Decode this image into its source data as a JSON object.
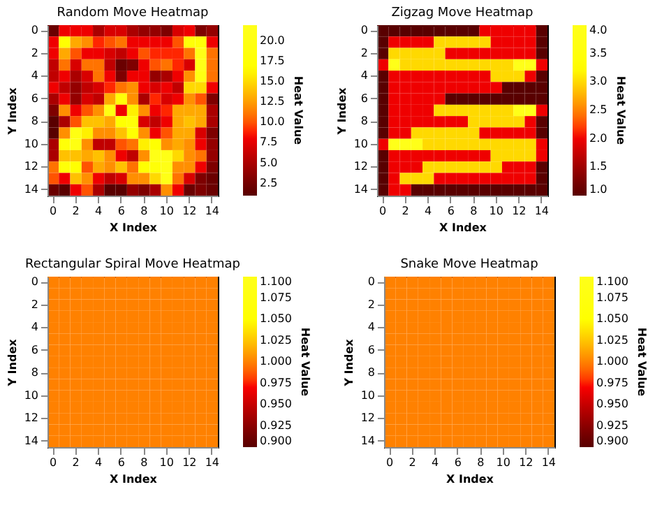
{
  "chart_data": [
    {
      "type": "heatmap",
      "title": "Random Move Heatmap",
      "xlabel": "X Index",
      "ylabel": "Y Index",
      "clabel": "Heat Value",
      "categories": [
        "0",
        null,
        "2",
        null,
        "4",
        null,
        "6",
        null,
        "8",
        null,
        "10",
        null,
        "12",
        null,
        "14"
      ],
      "y_categories": [
        "0",
        null,
        "2",
        null,
        "4",
        null,
        "6",
        null,
        "8",
        null,
        "10",
        null,
        "12",
        null,
        "14"
      ],
      "cells": [
        [
          2,
          8,
          8,
          8,
          5,
          7,
          7,
          5,
          4,
          4,
          3,
          7,
          8,
          3,
          4
        ],
        [
          8,
          17,
          13,
          12,
          9,
          10,
          11,
          8,
          8,
          8,
          8,
          10,
          18,
          18,
          8
        ],
        [
          8,
          13,
          10,
          8,
          8,
          7,
          6,
          8,
          10,
          9,
          9,
          9,
          11,
          21,
          11
        ],
        [
          6,
          11,
          7,
          11,
          11,
          6,
          2,
          3,
          8,
          10,
          11,
          9,
          7,
          21,
          11
        ],
        [
          6,
          8,
          5,
          7,
          11,
          8,
          3,
          8,
          8,
          4,
          5,
          8,
          12,
          20,
          11
        ],
        [
          8,
          6,
          4,
          6,
          7,
          9,
          11,
          12,
          8,
          7,
          8,
          6,
          15,
          15,
          8
        ],
        [
          5,
          8,
          4,
          7,
          6,
          13,
          18,
          12,
          5,
          9,
          7,
          8,
          12,
          10,
          3
        ],
        [
          3,
          12,
          8,
          10,
          12,
          20,
          8,
          16,
          12,
          8,
          9,
          13,
          13,
          13,
          5
        ],
        [
          1,
          5,
          10,
          14,
          14,
          13,
          17,
          18,
          7,
          6,
          8,
          13,
          14,
          13,
          5
        ],
        [
          1,
          12,
          20,
          16,
          12,
          12,
          14,
          17,
          12,
          8,
          10,
          13,
          13,
          7,
          3
        ],
        [
          5,
          18,
          20,
          12,
          6,
          6,
          10,
          11,
          16,
          17,
          12,
          13,
          12,
          8,
          4
        ],
        [
          5,
          14,
          14,
          13,
          14,
          12,
          8,
          6,
          12,
          21,
          21,
          15,
          12,
          11,
          4
        ],
        [
          11,
          18,
          17,
          10,
          13,
          12,
          14,
          11,
          17,
          18,
          21,
          12,
          12,
          8,
          3
        ],
        [
          10,
          8,
          14,
          12,
          8,
          6,
          7,
          12,
          12,
          15,
          21,
          11,
          7,
          3,
          2
        ],
        [
          2,
          1,
          8,
          10,
          5,
          1,
          1,
          4,
          3,
          5,
          12,
          8,
          2,
          3,
          2
        ]
      ],
      "clim": [
        1,
        22
      ],
      "cticks": [
        {
          "value": 2.5,
          "label": "2.5"
        },
        {
          "value": 5,
          "label": "5.0"
        },
        {
          "value": 7.5,
          "label": "7.5"
        },
        {
          "value": 10,
          "label": "10.0"
        },
        {
          "value": 12.5,
          "label": "12.5"
        },
        {
          "value": 15,
          "label": "15.0"
        },
        {
          "value": 17.5,
          "label": "17.5"
        },
        {
          "value": 20,
          "label": "20.0"
        }
      ]
    },
    {
      "type": "heatmap",
      "title": "Zigzag Move Heatmap",
      "xlabel": "X Index",
      "ylabel": "Y Index",
      "clabel": "Heat Value",
      "categories": [
        "0",
        null,
        "2",
        null,
        "4",
        null,
        "6",
        null,
        "8",
        null,
        "10",
        null,
        "12",
        null,
        "14"
      ],
      "y_categories": [
        "0",
        null,
        "2",
        null,
        "4",
        null,
        "6",
        null,
        "8",
        null,
        "10",
        null,
        "12",
        null,
        "14"
      ],
      "cells": [
        [
          1,
          1,
          1,
          1,
          1,
          1,
          1,
          1,
          1,
          2,
          2,
          2,
          2,
          2,
          1
        ],
        [
          1,
          2,
          2,
          2,
          2,
          3,
          3,
          3,
          3,
          3,
          2,
          2,
          2,
          2,
          1
        ],
        [
          1,
          3,
          3,
          3,
          3,
          3,
          2,
          2,
          2,
          2,
          2,
          2,
          2,
          2,
          1
        ],
        [
          2,
          4,
          3,
          3,
          3,
          3,
          3,
          3,
          3,
          3,
          3,
          3,
          4,
          4,
          2
        ],
        [
          1,
          2,
          2,
          2,
          2,
          2,
          2,
          2,
          2,
          2,
          3,
          3,
          3,
          2,
          1
        ],
        [
          1,
          2,
          2,
          2,
          2,
          2,
          2,
          2,
          2,
          2,
          2,
          1,
          1,
          1,
          1
        ],
        [
          1,
          2,
          2,
          2,
          2,
          2,
          1,
          1,
          1,
          1,
          1,
          1,
          1,
          1,
          1
        ],
        [
          1,
          2,
          2,
          2,
          2,
          3,
          3,
          3,
          3,
          3,
          3,
          3,
          4,
          4,
          2
        ],
        [
          1,
          2,
          2,
          2,
          2,
          2,
          2,
          2,
          3,
          3,
          3,
          3,
          3,
          2,
          1
        ],
        [
          1,
          2,
          2,
          3,
          3,
          3,
          3,
          3,
          3,
          2,
          2,
          2,
          2,
          2,
          1
        ],
        [
          2,
          4,
          4,
          4,
          3,
          3,
          3,
          3,
          3,
          3,
          3,
          3,
          3,
          3,
          2
        ],
        [
          1,
          2,
          2,
          2,
          2,
          2,
          2,
          2,
          2,
          2,
          3,
          3,
          3,
          3,
          2
        ],
        [
          1,
          2,
          2,
          2,
          3,
          3,
          3,
          3,
          3,
          3,
          3,
          2,
          2,
          2,
          1
        ],
        [
          1,
          2,
          3,
          3,
          3,
          2,
          2,
          2,
          2,
          2,
          2,
          2,
          2,
          2,
          1
        ],
        [
          1,
          2,
          2,
          1,
          1,
          1,
          1,
          1,
          1,
          1,
          1,
          1,
          1,
          1,
          1
        ]
      ],
      "clim": [
        1,
        4
      ],
      "cticks": [
        {
          "value": 1,
          "label": "1.0"
        },
        {
          "value": 1.5,
          "label": "1.5"
        },
        {
          "value": 2,
          "label": "2.0"
        },
        {
          "value": 2.5,
          "label": "2.5"
        },
        {
          "value": 3,
          "label": "3.0"
        },
        {
          "value": 3.5,
          "label": "3.5"
        },
        {
          "value": 4,
          "label": "4.0"
        }
      ]
    },
    {
      "type": "heatmap",
      "title": "Rectangular Spiral Move Heatmap",
      "xlabel": "X Index",
      "ylabel": "Y Index",
      "clabel": "Heat Value",
      "categories": [
        "0",
        null,
        "2",
        null,
        "4",
        null,
        "6",
        null,
        "8",
        null,
        "10",
        null,
        "12",
        null,
        "14"
      ],
      "y_categories": [
        "0",
        null,
        "2",
        null,
        "4",
        null,
        "6",
        null,
        "8",
        null,
        "10",
        null,
        "12",
        null,
        "14"
      ],
      "cells": [
        [
          1,
          1,
          1,
          1,
          1,
          1,
          1,
          1,
          1,
          1,
          1,
          1,
          1,
          1,
          1
        ],
        [
          1,
          1,
          1,
          1,
          1,
          1,
          1,
          1,
          1,
          1,
          1,
          1,
          1,
          1,
          1
        ],
        [
          1,
          1,
          1,
          1,
          1,
          1,
          1,
          1,
          1,
          1,
          1,
          1,
          1,
          1,
          1
        ],
        [
          1,
          1,
          1,
          1,
          1,
          1,
          1,
          1,
          1,
          1,
          1,
          1,
          1,
          1,
          1
        ],
        [
          1,
          1,
          1,
          1,
          1,
          1,
          1,
          1,
          1,
          1,
          1,
          1,
          1,
          1,
          1
        ],
        [
          1,
          1,
          1,
          1,
          1,
          1,
          1,
          1,
          1,
          1,
          1,
          1,
          1,
          1,
          1
        ],
        [
          1,
          1,
          1,
          1,
          1,
          1,
          1,
          1,
          1,
          1,
          1,
          1,
          1,
          1,
          1
        ],
        [
          1,
          1,
          1,
          1,
          1,
          1,
          1,
          1,
          1,
          1,
          1,
          1,
          1,
          1,
          1
        ],
        [
          1,
          1,
          1,
          1,
          1,
          1,
          1,
          1,
          1,
          1,
          1,
          1,
          1,
          1,
          1
        ],
        [
          1,
          1,
          1,
          1,
          1,
          1,
          1,
          1,
          1,
          1,
          1,
          1,
          1,
          1,
          1
        ],
        [
          1,
          1,
          1,
          1,
          1,
          1,
          1,
          1,
          1,
          1,
          1,
          1,
          1,
          1,
          1
        ],
        [
          1,
          1,
          1,
          1,
          1,
          1,
          1,
          1,
          1,
          1,
          1,
          1,
          1,
          1,
          1
        ],
        [
          1,
          1,
          1,
          1,
          1,
          1,
          1,
          1,
          1,
          1,
          1,
          1,
          1,
          1,
          1
        ],
        [
          1,
          1,
          1,
          1,
          1,
          1,
          1,
          1,
          1,
          1,
          1,
          1,
          1,
          1,
          1
        ],
        [
          1,
          1,
          1,
          1,
          1,
          1,
          1,
          1,
          1,
          1,
          1,
          1,
          1,
          1,
          1
        ]
      ],
      "clim": [
        0.9,
        1.1
      ],
      "cticks": [
        {
          "value": 0.9,
          "label": "0.900"
        },
        {
          "value": 0.925,
          "label": "0.925"
        },
        {
          "value": 0.95,
          "label": "0.950"
        },
        {
          "value": 0.975,
          "label": "0.975"
        },
        {
          "value": 1.0,
          "label": "1.000"
        },
        {
          "value": 1.025,
          "label": "1.025"
        },
        {
          "value": 1.05,
          "label": "1.050"
        },
        {
          "value": 1.075,
          "label": "1.075"
        },
        {
          "value": 1.1,
          "label": "1.100"
        }
      ]
    },
    {
      "type": "heatmap",
      "title": "Snake Move Heatmap",
      "xlabel": "X Index",
      "ylabel": "Y Index",
      "clabel": "Heat Value",
      "categories": [
        "0",
        null,
        "2",
        null,
        "4",
        null,
        "6",
        null,
        "8",
        null,
        "10",
        null,
        "12",
        null,
        "14"
      ],
      "y_categories": [
        "0",
        null,
        "2",
        null,
        "4",
        null,
        "6",
        null,
        "8",
        null,
        "10",
        null,
        "12",
        null,
        "14"
      ],
      "cells": [
        [
          1,
          1,
          1,
          1,
          1,
          1,
          1,
          1,
          1,
          1,
          1,
          1,
          1,
          1,
          1
        ],
        [
          1,
          1,
          1,
          1,
          1,
          1,
          1,
          1,
          1,
          1,
          1,
          1,
          1,
          1,
          1
        ],
        [
          1,
          1,
          1,
          1,
          1,
          1,
          1,
          1,
          1,
          1,
          1,
          1,
          1,
          1,
          1
        ],
        [
          1,
          1,
          1,
          1,
          1,
          1,
          1,
          1,
          1,
          1,
          1,
          1,
          1,
          1,
          1
        ],
        [
          1,
          1,
          1,
          1,
          1,
          1,
          1,
          1,
          1,
          1,
          1,
          1,
          1,
          1,
          1
        ],
        [
          1,
          1,
          1,
          1,
          1,
          1,
          1,
          1,
          1,
          1,
          1,
          1,
          1,
          1,
          1
        ],
        [
          1,
          1,
          1,
          1,
          1,
          1,
          1,
          1,
          1,
          1,
          1,
          1,
          1,
          1,
          1
        ],
        [
          1,
          1,
          1,
          1,
          1,
          1,
          1,
          1,
          1,
          1,
          1,
          1,
          1,
          1,
          1
        ],
        [
          1,
          1,
          1,
          1,
          1,
          1,
          1,
          1,
          1,
          1,
          1,
          1,
          1,
          1,
          1
        ],
        [
          1,
          1,
          1,
          1,
          1,
          1,
          1,
          1,
          1,
          1,
          1,
          1,
          1,
          1,
          1
        ],
        [
          1,
          1,
          1,
          1,
          1,
          1,
          1,
          1,
          1,
          1,
          1,
          1,
          1,
          1,
          1
        ],
        [
          1,
          1,
          1,
          1,
          1,
          1,
          1,
          1,
          1,
          1,
          1,
          1,
          1,
          1,
          1
        ],
        [
          1,
          1,
          1,
          1,
          1,
          1,
          1,
          1,
          1,
          1,
          1,
          1,
          1,
          1,
          1
        ],
        [
          1,
          1,
          1,
          1,
          1,
          1,
          1,
          1,
          1,
          1,
          1,
          1,
          1,
          1,
          1
        ],
        [
          1,
          1,
          1,
          1,
          1,
          1,
          1,
          1,
          1,
          1,
          1,
          1,
          1,
          1,
          1
        ]
      ],
      "clim": [
        0.9,
        1.1
      ],
      "cticks": [
        {
          "value": 0.9,
          "label": "0.900"
        },
        {
          "value": 0.925,
          "label": "0.925"
        },
        {
          "value": 0.95,
          "label": "0.950"
        },
        {
          "value": 0.975,
          "label": "0.975"
        },
        {
          "value": 1.0,
          "label": "1.000"
        },
        {
          "value": 1.025,
          "label": "1.025"
        },
        {
          "value": 1.05,
          "label": "1.050"
        },
        {
          "value": 1.075,
          "label": "1.075"
        },
        {
          "value": 1.1,
          "label": "1.100"
        }
      ]
    }
  ]
}
